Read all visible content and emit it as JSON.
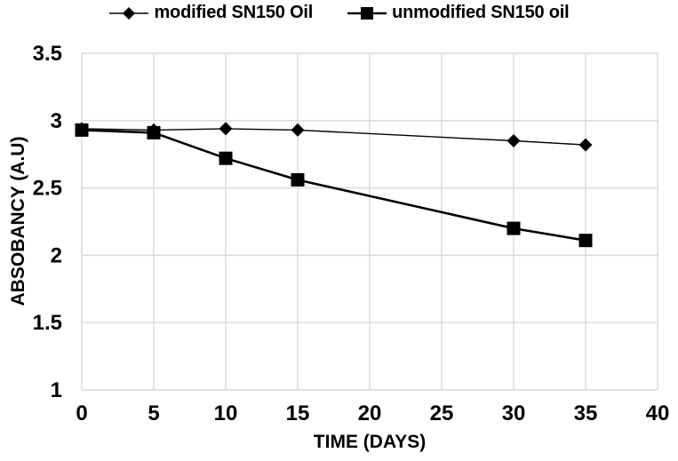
{
  "figure": {
    "background": "#ffffff",
    "text_color": "#000000"
  },
  "chart_data": {
    "type": "line",
    "title": "",
    "xlabel": "TIME (DAYS)",
    "ylabel": "ABSOBANCY (A.U)",
    "x": [
      0,
      5,
      10,
      15,
      30,
      35
    ],
    "series": [
      {
        "name": "modified SN150 Oil",
        "marker": "diamond",
        "color": "#000000",
        "line_width": 1.4,
        "values": [
          2.94,
          2.93,
          2.94,
          2.93,
          2.85,
          2.82
        ]
      },
      {
        "name": "unmodified SN150 oil",
        "marker": "square",
        "color": "#000000",
        "line_width": 2.6,
        "values": [
          2.93,
          2.91,
          2.72,
          2.56,
          2.2,
          2.11
        ]
      }
    ],
    "xlim": [
      0,
      40
    ],
    "ylim": [
      1,
      3.5
    ],
    "x_ticks": [
      0,
      5,
      10,
      15,
      20,
      25,
      30,
      35,
      40
    ],
    "y_ticks": [
      1,
      1.5,
      2,
      2.5,
      3,
      3.5
    ],
    "grid": true,
    "gridline_color": "#d9d9d9",
    "legend_position": "top"
  }
}
